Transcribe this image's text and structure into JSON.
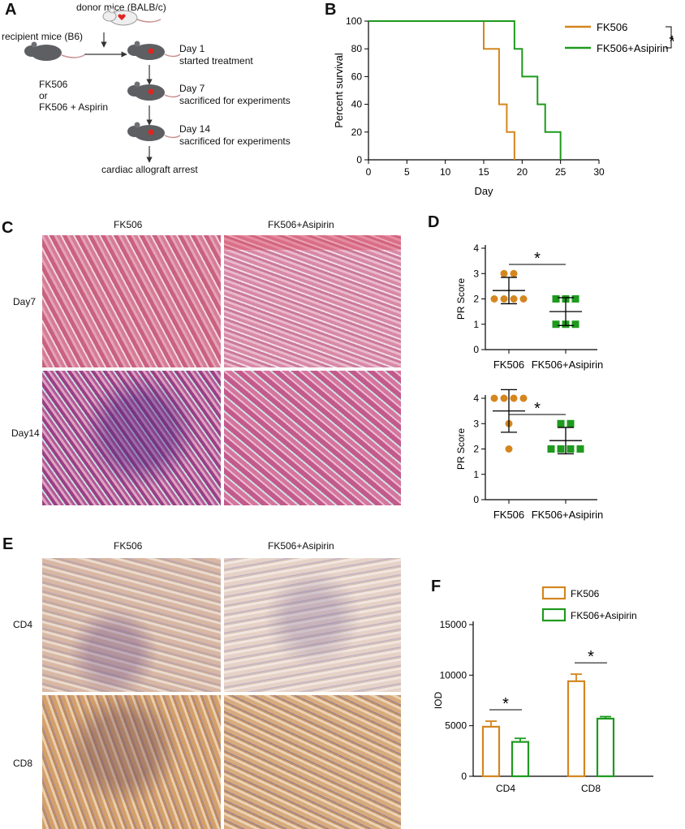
{
  "panels": {
    "A": "A",
    "B": "B",
    "C": "C",
    "D": "D",
    "E": "E",
    "F": "F"
  },
  "panelA": {
    "donor_label": "donor mice (BALB/c)",
    "recipient_label": "recipient mice (B6)",
    "treatment_line1": "FK506",
    "treatment_or": "or",
    "treatment_line2": "FK506 + Aspirin",
    "steps": [
      {
        "day": "Day 1",
        "desc": "started treatment"
      },
      {
        "day": "Day 7",
        "desc": "sacrificed for experiments"
      },
      {
        "day": "Day 14",
        "desc": "sacrificed for experiments"
      }
    ],
    "end_label": "cardiac allograft arrest",
    "colors": {
      "mouse_gray": "#5d5f63",
      "mouse_white": "#eeeeee",
      "heart_red": "#e0241f",
      "tail": "#c98f8f"
    }
  },
  "chart_data": [
    {
      "type": "line",
      "subtype": "step",
      "xlabel": "Day",
      "ylabel": "Percent survival",
      "xlim": [
        0,
        30
      ],
      "ylim": [
        0,
        100
      ],
      "xticks": [
        0,
        5,
        10,
        15,
        20,
        25,
        30
      ],
      "yticks": [
        0,
        20,
        40,
        60,
        80,
        100
      ],
      "legend_position": "top-right",
      "significance": "*",
      "series": [
        {
          "name": "FK506",
          "color": "#d4861f",
          "x": [
            0,
            15,
            17,
            18,
            19
          ],
          "y": [
            100,
            80,
            40,
            20,
            0
          ]
        },
        {
          "name": "FK506+Asipirin",
          "color": "#1e9a1e",
          "x": [
            0,
            19,
            20,
            22,
            23,
            25
          ],
          "y": [
            100,
            80,
            60,
            40,
            20,
            0
          ]
        }
      ]
    },
    {
      "type": "scatter",
      "ylabel": "PR Score",
      "ylim": [
        0,
        4
      ],
      "yticks": [
        0,
        1,
        2,
        3,
        4
      ],
      "categories": [
        "FK506",
        "FK506+Asipirin"
      ],
      "significance": "*",
      "series": [
        {
          "name": "FK506",
          "color": "#d4861f",
          "marker": "circle",
          "values": [
            3,
            3,
            2,
            2,
            2,
            2
          ],
          "mean": 2.33,
          "sd": 0.52
        },
        {
          "name": "FK506+Asipirin",
          "color": "#1e9a1e",
          "marker": "square",
          "values": [
            2,
            2,
            2,
            1,
            1,
            1
          ],
          "mean": 1.5,
          "sd": 0.55
        }
      ]
    },
    {
      "type": "scatter",
      "ylabel": "PR Score",
      "ylim": [
        0,
        4
      ],
      "yticks": [
        0,
        1,
        2,
        3,
        4
      ],
      "categories": [
        "FK506",
        "FK506+Asipirin"
      ],
      "significance": "*",
      "series": [
        {
          "name": "FK506",
          "color": "#d4861f",
          "marker": "circle",
          "values": [
            4,
            4,
            4,
            4,
            3,
            2
          ],
          "mean": 3.5,
          "sd": 0.84
        },
        {
          "name": "FK506+Asipirin",
          "color": "#1e9a1e",
          "marker": "square",
          "values": [
            3,
            3,
            2,
            2,
            2,
            2
          ],
          "mean": 2.33,
          "sd": 0.52
        }
      ]
    },
    {
      "type": "bar",
      "ylabel": "IOD",
      "ylim": [
        0,
        15000
      ],
      "yticks": [
        0,
        5000,
        10000,
        15000
      ],
      "categories": [
        "CD4",
        "CD8"
      ],
      "legend_position": "top",
      "significance": [
        "*",
        "*"
      ],
      "series": [
        {
          "name": "FK506",
          "color": "#d4861f",
          "values": [
            4900,
            9400
          ],
          "errors": [
            550,
            700
          ]
        },
        {
          "name": "FK506+Asipirin",
          "color": "#1e9a1e",
          "values": [
            3400,
            5700
          ],
          "errors": [
            350,
            200
          ]
        }
      ]
    }
  ],
  "panelC": {
    "col_labels": [
      "FK506",
      "FK506+Asipirin"
    ],
    "row_labels": [
      "Day7",
      "Day14"
    ]
  },
  "panelE": {
    "col_labels": [
      "FK506",
      "FK506+Asipirin"
    ],
    "row_labels": [
      "CD4",
      "CD8"
    ]
  }
}
